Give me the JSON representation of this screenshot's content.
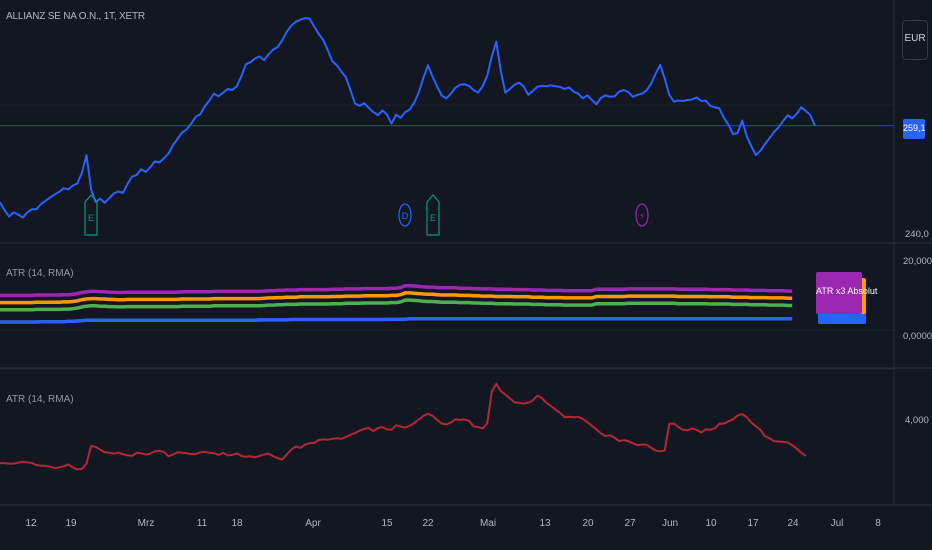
{
  "symbol_label": "ALLIANZ SE NA O.N., 1T, XETR",
  "currency_button": "EUR",
  "current_price": "259,1",
  "price_axis": {
    "tick_low": "240,0"
  },
  "atr_panes": [
    {
      "label": "ATR (14, RMA)",
      "axis_top": "20,000",
      "axis_low": "0,0000"
    },
    {
      "label": "ATR (14, RMA)",
      "axis_mid": "4,000"
    }
  ],
  "atr_badge_label": "ATR x3 Absolut",
  "colors": {
    "background": "#131722",
    "price_line": "#2962ff",
    "atr_blue": "#2962ff",
    "atr_green": "#4caf50",
    "atr_orange": "#ff9800",
    "atr_purple": "#9c27b0",
    "atr_red": "#b22833",
    "earnings": "#089981",
    "dividend": "#2962ff",
    "split": "#9c27b0"
  },
  "events": [
    {
      "type": "earnings",
      "icon": "earnings-icon",
      "glyph": "E",
      "date_index": 20
    },
    {
      "type": "dividend",
      "icon": "dividend-icon",
      "glyph": "D",
      "date_index": 89
    },
    {
      "type": "earnings",
      "icon": "earnings-icon",
      "glyph": "E",
      "date_index": 95
    },
    {
      "type": "split",
      "icon": "lightning-icon",
      "glyph": "⚡",
      "date_index": 141
    }
  ],
  "chart_data": [
    {
      "type": "line",
      "name": "price",
      "x_labels": [
        "12",
        "19",
        "Mrz",
        "11",
        "18",
        "Apr",
        "15",
        "22",
        "Mai",
        "13",
        "20",
        "27",
        "Jun",
        "10",
        "17",
        "24",
        "Jul",
        "8"
      ],
      "ylim": [
        240,
        280
      ],
      "y_ticks": [
        "240,0"
      ],
      "current_value": 259.1,
      "values": [
        244.5,
        243.0,
        241.8,
        242.6,
        242.2,
        241.6,
        242.6,
        243.2,
        243.2,
        244.2,
        244.8,
        245.4,
        246.0,
        246.5,
        247.2,
        247.0,
        247.7,
        248.1,
        250.2,
        253.5,
        247.0,
        244.6,
        245.2,
        244.4,
        245.3,
        246.2,
        246.6,
        246.3,
        248.0,
        249.4,
        249.7,
        250.8,
        250.3,
        251.2,
        252.3,
        252.1,
        252.9,
        253.8,
        255.4,
        256.6,
        257.8,
        258.4,
        259.5,
        260.8,
        261.3,
        262.8,
        263.9,
        265.2,
        264.7,
        265.4,
        266.1,
        265.9,
        266.6,
        268.5,
        270.8,
        271.2,
        271.9,
        272.3,
        271.6,
        272.7,
        273.6,
        274.1,
        275.4,
        277.0,
        278.2,
        278.9,
        279.3,
        279.6,
        279.5,
        278.0,
        276.6,
        275.4,
        273.5,
        271.4,
        270.6,
        269.4,
        268.3,
        265.8,
        263.3,
        262.9,
        263.4,
        262.5,
        261.7,
        261.1,
        262.0,
        261.2,
        259.5,
        261.2,
        260.6,
        261.7,
        262.2,
        263.5,
        265.5,
        268.2,
        270.6,
        268.5,
        266.6,
        264.9,
        264.3,
        265.2,
        266.3,
        266.9,
        267.0,
        266.7,
        265.9,
        265.4,
        266.6,
        268.6,
        272.2,
        275.1,
        269.5,
        265.4,
        266.1,
        266.9,
        267.3,
        266.6,
        265.0,
        265.7,
        266.5,
        266.7,
        266.6,
        266.8,
        266.6,
        266.5,
        266.1,
        266.4,
        265.6,
        265.2,
        264.3,
        264.9,
        264.0,
        263.2,
        264.4,
        264.9,
        264.6,
        264.7,
        265.6,
        265.9,
        265.5,
        264.6,
        265.0,
        265.2,
        265.8,
        267.1,
        269.0,
        270.7,
        268.1,
        265.0,
        263.7,
        263.9,
        263.8,
        264.0,
        264.1,
        264.5,
        263.8,
        263.9,
        262.9,
        262.6,
        262.4,
        260.6,
        259.3,
        257.5,
        257.7,
        260.1,
        257.1,
        255.2,
        253.5,
        254.3,
        255.6,
        256.7,
        257.9,
        258.8,
        260.0,
        261.1,
        260.5,
        261.4,
        262.6,
        261.9,
        261.1,
        259.1
      ]
    },
    {
      "type": "line",
      "name": "ATR bands",
      "ylim": [
        0,
        20
      ],
      "y_ticks": [
        "20,000",
        "0,0000"
      ],
      "series": [
        {
          "color": "blue",
          "values": [
            3.6,
            3.6,
            3.6,
            3.6,
            3.6,
            3.6,
            3.6,
            3.6,
            3.6,
            3.7,
            3.7,
            3.7,
            3.7,
            3.7,
            3.7,
            3.8,
            3.8,
            3.9,
            4.0,
            4.1,
            4.1,
            4.1,
            4.1,
            4.1,
            4.1,
            4.1,
            4.1,
            4.1,
            4.1,
            4.1,
            4.1,
            4.1,
            4.1,
            4.1,
            4.1,
            4.1,
            4.1,
            4.1,
            4.1,
            4.1,
            4.1,
            4.1,
            4.1,
            4.1,
            4.1,
            4.1,
            4.1,
            4.1,
            4.1,
            4.1,
            4.1,
            4.1,
            4.1,
            4.1,
            4.1,
            4.1,
            4.1,
            4.2,
            4.2,
            4.2,
            4.2,
            4.2,
            4.2,
            4.2,
            4.3,
            4.3,
            4.3,
            4.3,
            4.3,
            4.3,
            4.3,
            4.3,
            4.3,
            4.3,
            4.3,
            4.3,
            4.3,
            4.3,
            4.3,
            4.3,
            4.3,
            4.3,
            4.3,
            4.3,
            4.3,
            4.4,
            4.4,
            4.4,
            4.4,
            4.4,
            4.5,
            4.5,
            4.5,
            4.5,
            4.5,
            4.5,
            4.5,
            4.5,
            4.5,
            4.5,
            4.5,
            4.5,
            4.5,
            4.5,
            4.5,
            4.5,
            4.5,
            4.5,
            4.5,
            4.5,
            4.5,
            4.5,
            4.5,
            4.5,
            4.5,
            4.5,
            4.5,
            4.5,
            4.5,
            4.5,
            4.5,
            4.5,
            4.5,
            4.5,
            4.5,
            4.5,
            4.5,
            4.5,
            4.5,
            4.5,
            4.5,
            4.5,
            4.5,
            4.5,
            4.5,
            4.5,
            4.5,
            4.5,
            4.5,
            4.5,
            4.5,
            4.5,
            4.5,
            4.5,
            4.5,
            4.5,
            4.5,
            4.5,
            4.5,
            4.5,
            4.5,
            4.5,
            4.5,
            4.5,
            4.5,
            4.5,
            4.5,
            4.5,
            4.5,
            4.5,
            4.5,
            4.5,
            4.5,
            4.5,
            4.5,
            4.5,
            4.5,
            4.5,
            4.5,
            4.5,
            4.5,
            4.5,
            4.5,
            4.5,
            4.5
          ]
        },
        {
          "color": "green",
          "values": [
            7.0,
            7.0,
            7.0,
            7.0,
            7.0,
            7.0,
            7.0,
            7.0,
            7.1,
            7.1,
            7.1,
            7.1,
            7.1,
            7.1,
            7.2,
            7.2,
            7.3,
            7.5,
            7.8,
            8.0,
            8.1,
            8.1,
            8.0,
            8.0,
            7.9,
            7.9,
            7.8,
            7.8,
            7.9,
            7.9,
            7.9,
            7.9,
            7.9,
            7.9,
            7.9,
            7.9,
            7.9,
            7.9,
            7.9,
            7.9,
            8.0,
            8.0,
            8.0,
            8.0,
            8.0,
            8.0,
            8.0,
            8.1,
            8.1,
            8.1,
            8.1,
            8.1,
            8.1,
            8.1,
            8.1,
            8.1,
            8.1,
            8.1,
            8.2,
            8.3,
            8.3,
            8.4,
            8.4,
            8.5,
            8.5,
            8.5,
            8.6,
            8.6,
            8.6,
            8.6,
            8.6,
            8.6,
            8.6,
            8.7,
            8.7,
            8.7,
            8.8,
            8.8,
            8.8,
            8.8,
            8.9,
            8.9,
            8.9,
            8.9,
            8.9,
            8.9,
            9.0,
            9.0,
            9.2,
            9.7,
            9.7,
            9.6,
            9.5,
            9.4,
            9.3,
            9.3,
            9.2,
            9.1,
            9.1,
            9.1,
            9.1,
            9.0,
            9.0,
            9.0,
            8.9,
            8.9,
            8.8,
            8.8,
            8.8,
            8.7,
            8.7,
            8.7,
            8.7,
            8.6,
            8.6,
            8.6,
            8.6,
            8.5,
            8.5,
            8.5,
            8.4,
            8.4,
            8.4,
            8.4,
            8.3,
            8.3,
            8.3,
            8.3,
            8.3,
            8.3,
            8.3,
            8.7,
            8.7,
            8.7,
            8.7,
            8.7,
            8.7,
            8.7,
            8.8,
            8.8,
            8.8,
            8.8,
            8.8,
            8.8,
            8.8,
            8.8,
            8.8,
            8.8,
            8.8,
            8.7,
            8.7,
            8.7,
            8.7,
            8.7,
            8.7,
            8.7,
            8.6,
            8.6,
            8.6,
            8.6,
            8.6,
            8.5,
            8.5,
            8.5,
            8.5,
            8.4,
            8.4,
            8.4,
            8.4,
            8.3,
            8.3,
            8.3,
            8.3,
            8.2,
            8.2
          ]
        },
        {
          "color": "orange",
          "values": [
            9.0,
            9.0,
            9.0,
            9.0,
            9.0,
            9.0,
            9.0,
            9.0,
            9.1,
            9.1,
            9.1,
            9.1,
            9.1,
            9.1,
            9.2,
            9.2,
            9.3,
            9.5,
            9.8,
            10.0,
            10.1,
            10.1,
            10.0,
            10.0,
            9.9,
            9.9,
            9.8,
            9.8,
            9.9,
            9.9,
            9.9,
            9.9,
            9.9,
            9.9,
            9.9,
            9.9,
            9.9,
            9.9,
            9.9,
            9.9,
            10.0,
            10.0,
            10.0,
            10.0,
            10.0,
            10.0,
            10.0,
            10.1,
            10.1,
            10.1,
            10.1,
            10.1,
            10.1,
            10.1,
            10.1,
            10.1,
            10.1,
            10.1,
            10.2,
            10.3,
            10.3,
            10.4,
            10.4,
            10.5,
            10.5,
            10.5,
            10.6,
            10.6,
            10.6,
            10.6,
            10.6,
            10.6,
            10.6,
            10.7,
            10.7,
            10.7,
            10.8,
            10.8,
            10.8,
            10.8,
            10.9,
            10.9,
            10.9,
            10.9,
            10.9,
            10.9,
            11.0,
            11.0,
            11.2,
            11.7,
            11.7,
            11.6,
            11.5,
            11.4,
            11.3,
            11.3,
            11.2,
            11.1,
            11.1,
            11.1,
            11.1,
            11.0,
            11.0,
            11.0,
            10.9,
            10.9,
            10.8,
            10.8,
            10.8,
            10.7,
            10.7,
            10.7,
            10.7,
            10.6,
            10.6,
            10.6,
            10.6,
            10.5,
            10.5,
            10.5,
            10.4,
            10.4,
            10.4,
            10.4,
            10.3,
            10.3,
            10.3,
            10.3,
            10.3,
            10.3,
            10.3,
            10.7,
            10.7,
            10.7,
            10.7,
            10.7,
            10.7,
            10.7,
            10.8,
            10.8,
            10.8,
            10.8,
            10.8,
            10.8,
            10.8,
            10.8,
            10.8,
            10.8,
            10.8,
            10.7,
            10.7,
            10.7,
            10.7,
            10.7,
            10.7,
            10.7,
            10.6,
            10.6,
            10.6,
            10.6,
            10.6,
            10.5,
            10.5,
            10.5,
            10.5,
            10.4,
            10.4,
            10.4,
            10.4,
            10.3,
            10.3,
            10.3,
            10.3,
            10.2,
            10.2
          ]
        },
        {
          "color": "purple",
          "values": [
            11.0,
            11.0,
            11.0,
            11.0,
            11.0,
            11.0,
            11.0,
            11.0,
            11.1,
            11.1,
            11.1,
            11.1,
            11.1,
            11.1,
            11.2,
            11.2,
            11.3,
            11.5,
            11.8,
            12.0,
            12.1,
            12.1,
            12.0,
            12.0,
            11.9,
            11.9,
            11.8,
            11.8,
            11.9,
            11.9,
            11.9,
            11.9,
            11.9,
            11.9,
            11.9,
            11.9,
            11.9,
            11.9,
            11.9,
            11.9,
            12.0,
            12.0,
            12.0,
            12.0,
            12.0,
            12.0,
            12.0,
            12.1,
            12.1,
            12.1,
            12.1,
            12.1,
            12.1,
            12.1,
            12.1,
            12.1,
            12.1,
            12.1,
            12.2,
            12.3,
            12.3,
            12.4,
            12.4,
            12.5,
            12.5,
            12.5,
            12.6,
            12.6,
            12.6,
            12.6,
            12.6,
            12.6,
            12.6,
            12.7,
            12.7,
            12.7,
            12.8,
            12.8,
            12.8,
            12.8,
            12.9,
            12.9,
            12.9,
            12.9,
            12.9,
            12.9,
            13.0,
            13.0,
            13.2,
            13.7,
            13.7,
            13.6,
            13.5,
            13.4,
            13.3,
            13.3,
            13.2,
            13.1,
            13.1,
            13.1,
            13.1,
            13.0,
            13.0,
            13.0,
            12.9,
            12.9,
            12.8,
            12.8,
            12.8,
            12.7,
            12.7,
            12.7,
            12.7,
            12.6,
            12.6,
            12.6,
            12.6,
            12.5,
            12.5,
            12.5,
            12.4,
            12.4,
            12.4,
            12.4,
            12.3,
            12.3,
            12.3,
            12.3,
            12.3,
            12.3,
            12.3,
            12.7,
            12.7,
            12.7,
            12.7,
            12.7,
            12.7,
            12.7,
            12.8,
            12.8,
            12.8,
            12.8,
            12.8,
            12.8,
            12.8,
            12.8,
            12.8,
            12.8,
            12.8,
            12.7,
            12.7,
            12.7,
            12.7,
            12.7,
            12.7,
            12.7,
            12.6,
            12.6,
            12.6,
            12.6,
            12.6,
            12.5,
            12.5,
            12.5,
            12.5,
            12.4,
            12.4,
            12.4,
            12.4,
            12.3,
            12.3,
            12.3,
            12.3,
            12.2,
            12.2
          ]
        }
      ]
    },
    {
      "type": "line",
      "name": "ATR",
      "ylim": [
        2.0,
        4.8
      ],
      "y_ticks": [
        "4,000"
      ],
      "values": [
        2.82,
        2.82,
        2.81,
        2.81,
        2.83,
        2.85,
        2.84,
        2.82,
        2.78,
        2.76,
        2.76,
        2.74,
        2.71,
        2.72,
        2.75,
        2.79,
        2.72,
        2.68,
        2.69,
        2.81,
        3.2,
        3.18,
        3.12,
        3.06,
        3.05,
        3.03,
        3.05,
        3.02,
        2.99,
        2.98,
        3.05,
        3.04,
        3.01,
        3.03,
        3.08,
        3.09,
        3.07,
        2.97,
        3.01,
        3.06,
        3.05,
        3.04,
        3.02,
        3.02,
        3.06,
        3.07,
        3.05,
        3.04,
        3.0,
        3.05,
        2.99,
        3.0,
        3.04,
        2.98,
        2.96,
        2.97,
        2.95,
        2.98,
        3.01,
        3.03,
        2.97,
        2.93,
        2.9,
        3.01,
        3.12,
        3.19,
        3.16,
        3.23,
        3.26,
        3.27,
        3.33,
        3.35,
        3.34,
        3.36,
        3.37,
        3.36,
        3.4,
        3.45,
        3.49,
        3.54,
        3.58,
        3.6,
        3.53,
        3.6,
        3.62,
        3.57,
        3.56,
        3.66,
        3.63,
        3.61,
        3.65,
        3.71,
        3.79,
        3.87,
        3.92,
        3.87,
        3.78,
        3.7,
        3.68,
        3.72,
        3.79,
        3.78,
        3.79,
        3.76,
        3.64,
        3.62,
        3.59,
        3.7,
        4.4,
        4.58,
        4.42,
        4.34,
        4.26,
        4.17,
        4.16,
        4.14,
        4.16,
        4.21,
        4.32,
        4.27,
        4.16,
        4.09,
        4.01,
        3.94,
        3.84,
        3.85,
        3.84,
        3.85,
        3.8,
        3.73,
        3.65,
        3.57,
        3.48,
        3.42,
        3.44,
        3.38,
        3.31,
        3.33,
        3.31,
        3.26,
        3.22,
        3.23,
        3.23,
        3.16,
        3.1,
        3.08,
        3.1,
        3.69,
        3.7,
        3.62,
        3.56,
        3.55,
        3.59,
        3.56,
        3.5,
        3.57,
        3.56,
        3.59,
        3.69,
        3.7,
        3.75,
        3.79,
        3.88,
        3.91,
        3.84,
        3.72,
        3.64,
        3.56,
        3.42,
        3.37,
        3.31,
        3.3,
        3.29,
        3.28,
        3.22,
        3.14,
        3.05,
        2.98
      ]
    }
  ]
}
